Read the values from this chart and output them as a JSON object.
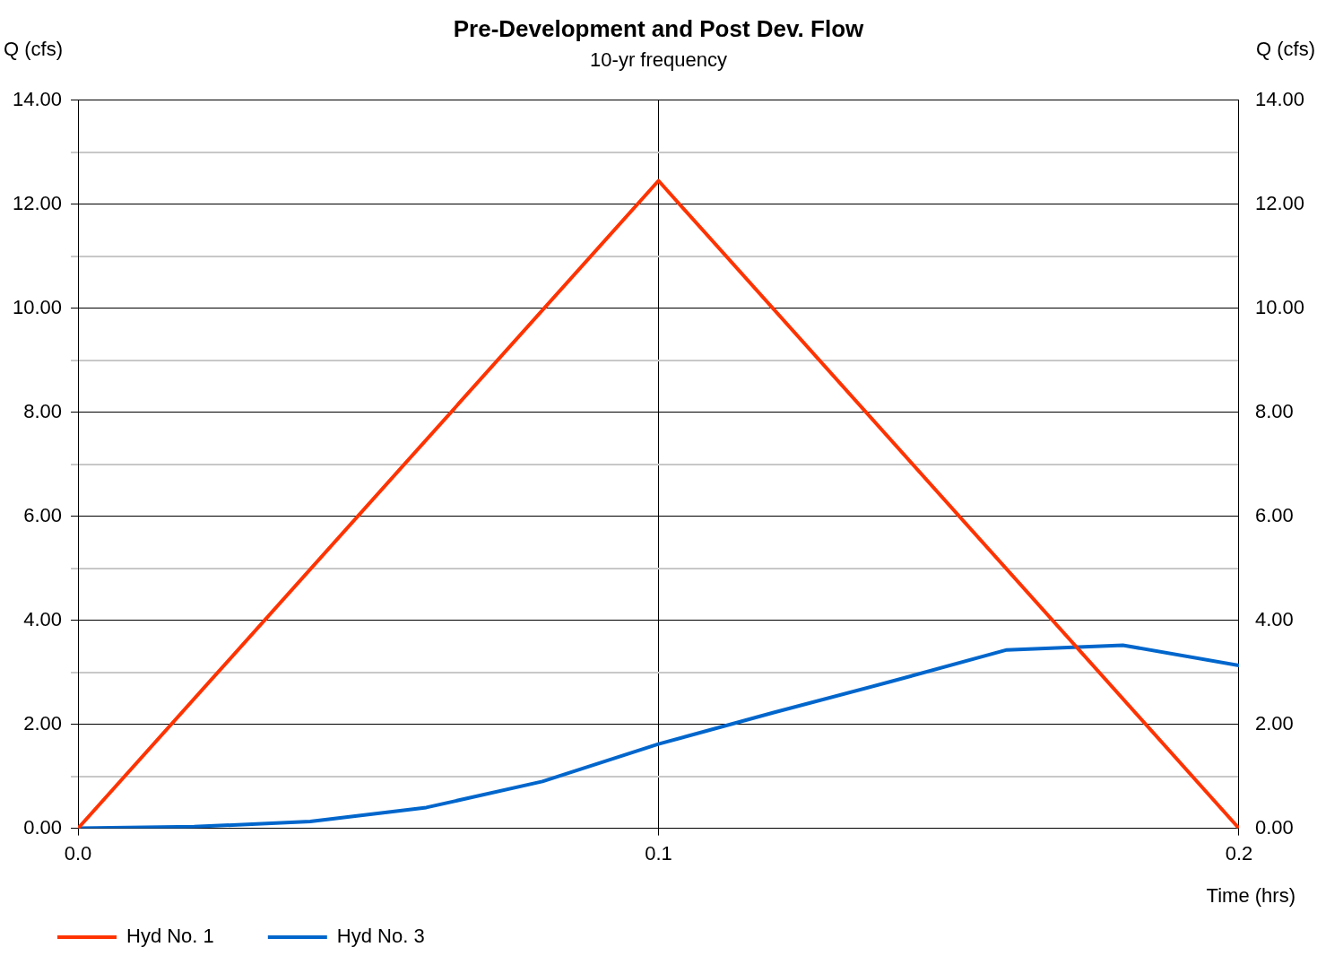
{
  "chart_data": {
    "type": "line",
    "title": "Pre-Development and Post Dev. Flow",
    "subtitle": "10-yr frequency",
    "xlabel": "Time (hrs)",
    "ylabel": "Q (cfs)",
    "y2label": "Q (cfs)",
    "series": [
      {
        "name": "Hyd No. 1",
        "color": "#ff3300",
        "x": [
          0,
          0.1,
          0.2
        ],
        "values": [
          0,
          12.45,
          0
        ]
      },
      {
        "name": "Hyd No. 3",
        "color": "#0066cc",
        "x": [
          0,
          0.02,
          0.04,
          0.06,
          0.08,
          0.1,
          0.12,
          0.14,
          0.16,
          0.18,
          0.2
        ],
        "values": [
          0,
          0.03,
          0.13,
          0.4,
          0.9,
          1.62,
          2.23,
          2.82,
          3.43,
          3.52,
          3.13
        ]
      }
    ],
    "xlim": [
      0,
      0.2
    ],
    "xticks": [
      {
        "value": 0,
        "label": "0.0"
      },
      {
        "value": 0.1,
        "label": "0.1"
      },
      {
        "value": 0.2,
        "label": "0.2"
      }
    ],
    "ylim": [
      0,
      14
    ],
    "yticks": [
      {
        "value": 0,
        "label": "0.00"
      },
      {
        "value": 1,
        "label": null
      },
      {
        "value": 2,
        "label": "2.00"
      },
      {
        "value": 3,
        "label": null
      },
      {
        "value": 4,
        "label": "4.00"
      },
      {
        "value": 5,
        "label": null
      },
      {
        "value": 6,
        "label": "6.00"
      },
      {
        "value": 7,
        "label": null
      },
      {
        "value": 8,
        "label": "8.00"
      },
      {
        "value": 9,
        "label": null
      },
      {
        "value": 10,
        "label": "10.00"
      },
      {
        "value": 11,
        "label": null
      },
      {
        "value": 12,
        "label": "12.00"
      },
      {
        "value": 13,
        "label": null
      },
      {
        "value": 14,
        "label": "14.00"
      }
    ],
    "y2lim": [
      0,
      14
    ],
    "y2ticks": [
      {
        "value": 0,
        "label": "0.00"
      },
      {
        "value": 2,
        "label": "2.00"
      },
      {
        "value": 4,
        "label": "4.00"
      },
      {
        "value": 6,
        "label": "6.00"
      },
      {
        "value": 8,
        "label": "8.00"
      },
      {
        "value": 10,
        "label": "10.00"
      },
      {
        "value": 12,
        "label": "12.00"
      },
      {
        "value": 14,
        "label": "14.00"
      }
    ],
    "grid": true,
    "legend": "bottom left",
    "marker": "none",
    "line_style": "solid"
  }
}
